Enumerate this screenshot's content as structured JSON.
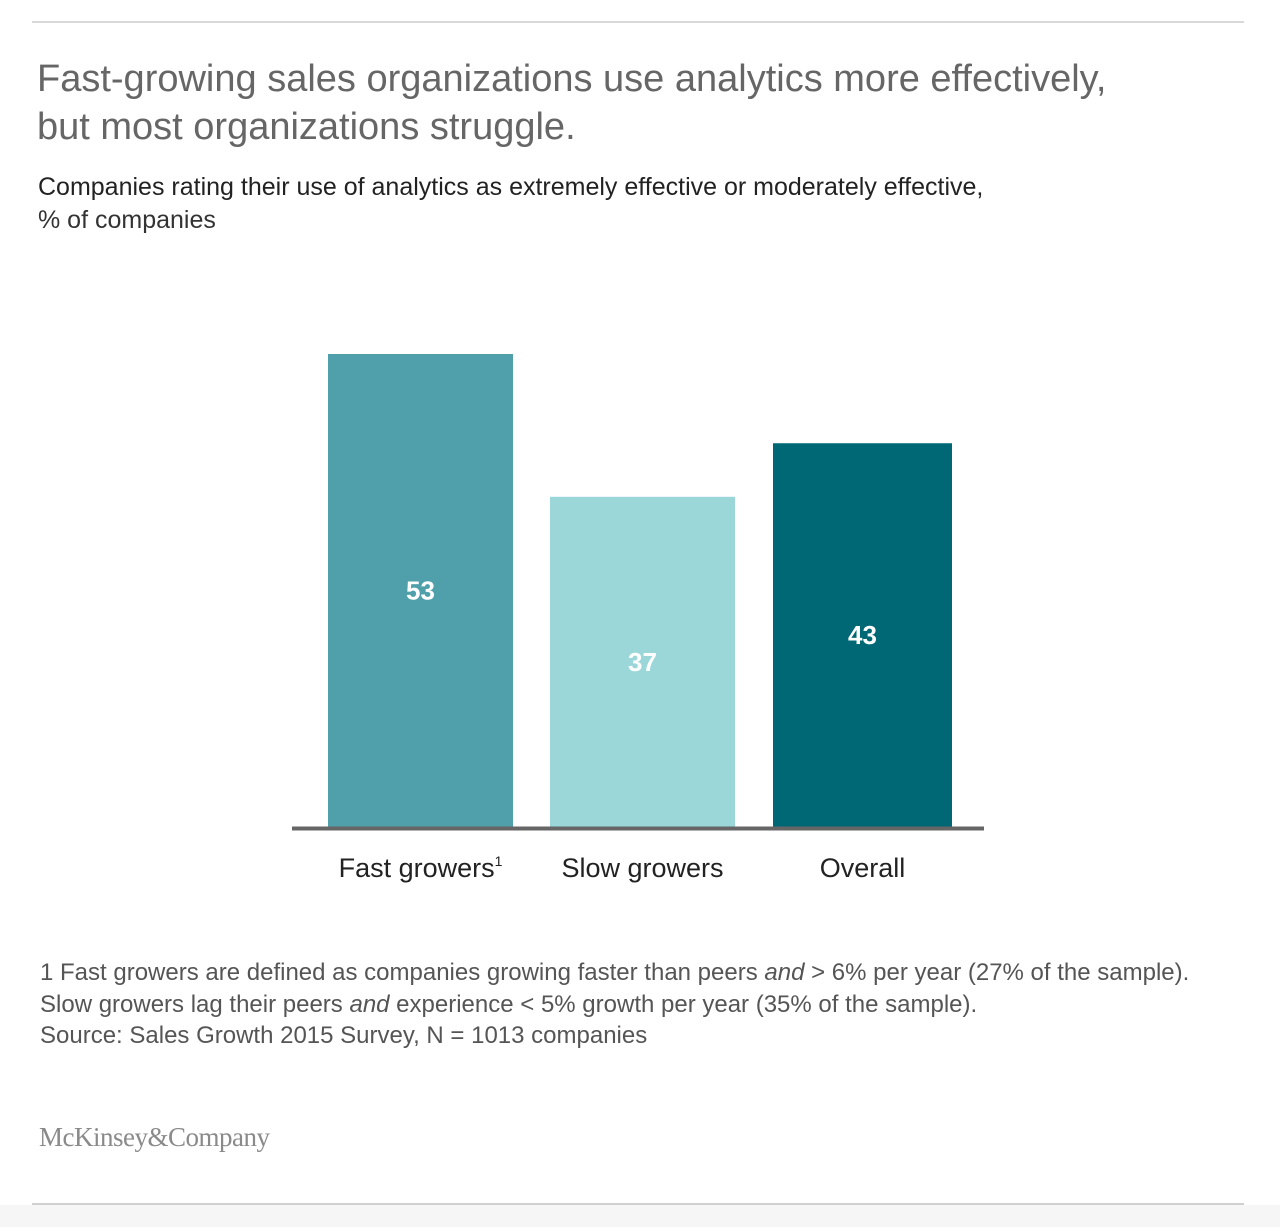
{
  "header": {
    "title": "Fast-growing sales organizations use analytics more effectively, but most organizations struggle.",
    "subtitle_line1": "Companies rating their use of analytics as extremely effective or moderately effective,",
    "subtitle_line2": "% of companies"
  },
  "chart_data": {
    "type": "bar",
    "title": "Fast-growing sales organizations use analytics more effectively, but most organizations struggle.",
    "subtitle": "Companies rating their use of analytics as extremely effective or moderately effective, % of companies",
    "categories": [
      "Fast growers",
      "Slow growers",
      "Overall"
    ],
    "category_superscripts": [
      "1",
      "",
      ""
    ],
    "values": [
      53,
      37,
      43
    ],
    "data_labels": [
      "53",
      "37",
      "43"
    ],
    "colors": [
      "#50a0ab",
      "#9bd7d8",
      "#006874"
    ],
    "xlabel": "",
    "ylabel": "% of companies",
    "ylim": [
      0,
      53
    ],
    "grid": false,
    "legend": "none",
    "axis_color": "#666666"
  },
  "footnotes": {
    "note1_a": "1 Fast growers are defined as companies growing faster than peers ",
    "note1_em1": "and",
    "note1_b": " > 6% per year (27% of the sample). Slow growers lag their peers ",
    "note1_em2": "and",
    "note1_c": " experience < 5% growth per year (35% of the sample).",
    "source": "Source: Sales Growth 2015 Survey, N = 1013 companies"
  },
  "brand": {
    "logo_text": "McKinsey&Company"
  }
}
